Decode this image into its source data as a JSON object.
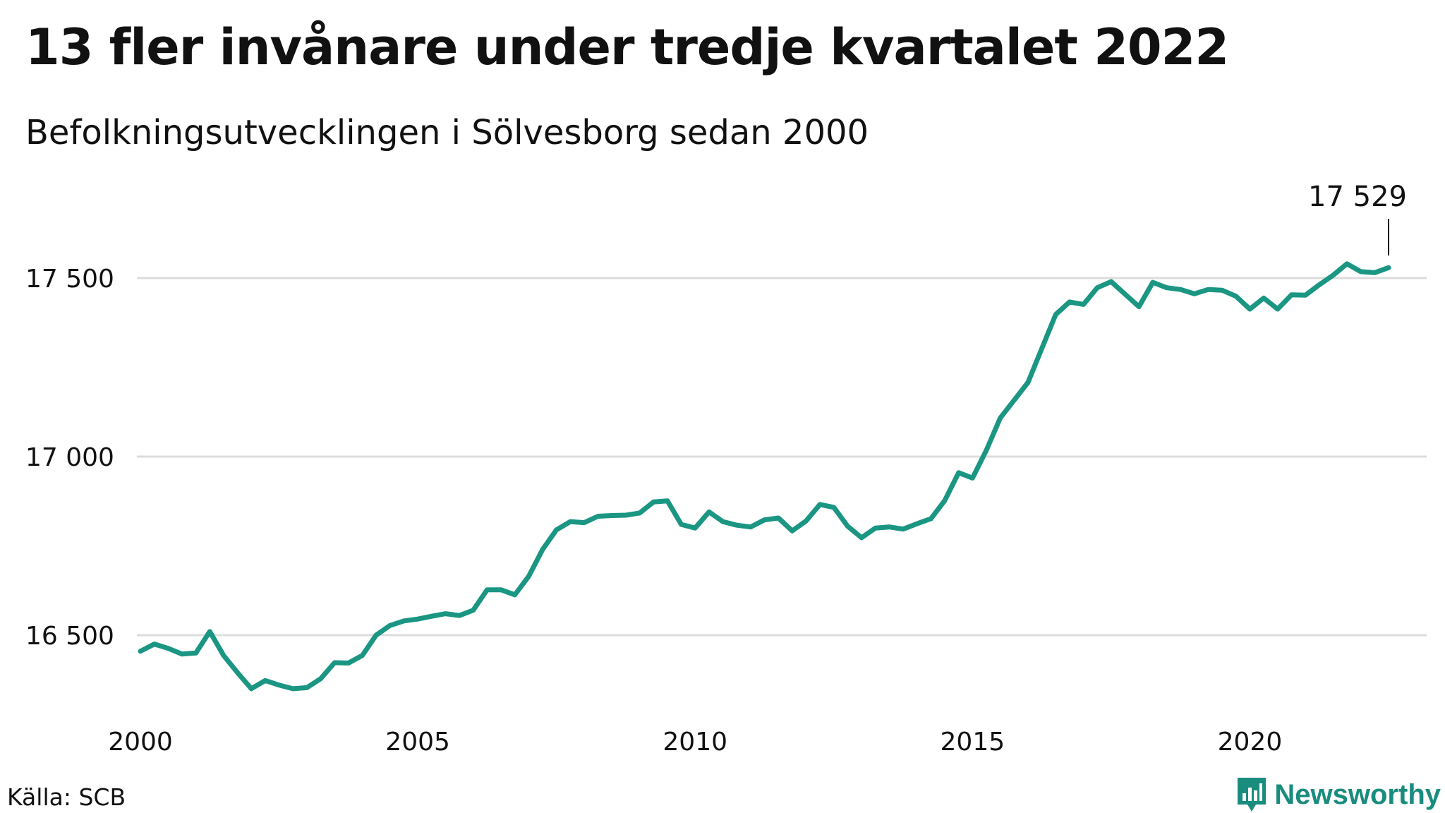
{
  "header": {
    "title": "13 fler invånare under tredje kvartalet 2022",
    "subtitle": "Befolkningsutvecklingen i Sölvesborg sedan 2000"
  },
  "footer": {
    "source": "Källa: SCB",
    "brand": "Newsworthy",
    "brand_icon": "bar-chart-icon"
  },
  "colors": {
    "line": "#1a9683",
    "grid": "#dcdcdc",
    "text": "#111111",
    "brand": "#1a8c7e"
  },
  "chart_data": {
    "type": "line",
    "title": "13 fler invånare under tredje kvartalet 2022",
    "subtitle": "Befolkningsutvecklingen i Sölvesborg sedan 2000",
    "xlabel": "",
    "ylabel": "",
    "xlim": [
      2000,
      2023.75
    ],
    "ylim": [
      16300,
      17800
    ],
    "grid": true,
    "legend": "none",
    "y_ticks": [
      16500,
      17000,
      17500
    ],
    "y_tick_labels": [
      "16 500",
      "17 000",
      "17 500"
    ],
    "x_ticks": [
      2000,
      2005,
      2010,
      2015,
      2020
    ],
    "x_tick_labels": [
      "2000",
      "2005",
      "2010",
      "2015",
      "2020"
    ],
    "annotation": {
      "label": "17 529",
      "x": 2022.5,
      "y": 17529
    },
    "series": [
      {
        "x": [
          2000,
          2000.25,
          2000.5,
          2000.75,
          2001,
          2001.25,
          2001.5,
          2001.75,
          2002,
          2002.25,
          2002.5,
          2002.75,
          2003,
          2003.25,
          2003.5,
          2003.75,
          2004,
          2004.25,
          2004.5,
          2004.75,
          2005,
          2005.25,
          2005.5,
          2005.75,
          2006,
          2006.25,
          2006.5,
          2006.75,
          2007,
          2007.25,
          2007.5,
          2007.75,
          2008,
          2008.25,
          2008.5,
          2008.75,
          2009,
          2009.25,
          2009.5,
          2009.75,
          2010,
          2010.25,
          2010.5,
          2010.75,
          2011,
          2011.25,
          2011.5,
          2011.75,
          2012,
          2012.25,
          2012.5,
          2012.75,
          2013,
          2013.25,
          2013.5,
          2013.75,
          2014,
          2014.25,
          2014.5,
          2014.75,
          2015,
          2015.25,
          2015.5,
          2015.75,
          2016,
          2016.25,
          2016.5,
          2016.75,
          2017,
          2017.25,
          2017.5,
          2017.75,
          2018,
          2018.25,
          2018.5,
          2018.75,
          2019,
          2019.25,
          2019.5,
          2019.75,
          2020,
          2020.25,
          2020.5,
          2020.75,
          2021,
          2021.25,
          2021.5,
          2021.75,
          2022,
          2022.25,
          2022.5
        ],
        "values": [
          16455,
          16475,
          16463,
          16447,
          16450,
          16510,
          16443,
          16395,
          16350,
          16373,
          16360,
          16350,
          16353,
          16378,
          16423,
          16422,
          16443,
          16500,
          16527,
          16540,
          16545,
          16553,
          16560,
          16555,
          16570,
          16627,
          16627,
          16613,
          16665,
          16740,
          16795,
          16818,
          16815,
          16833,
          16835,
          16836,
          16842,
          16873,
          16876,
          16810,
          16800,
          16845,
          16818,
          16808,
          16803,
          16823,
          16828,
          16792,
          16820,
          16866,
          16858,
          16805,
          16773,
          16800,
          16803,
          16797,
          16812,
          16826,
          16877,
          16955,
          16940,
          17018,
          17108,
          17158,
          17208,
          17303,
          17398,
          17433,
          17426,
          17473,
          17490,
          17455,
          17420,
          17488,
          17473,
          17468,
          17456,
          17468,
          17466,
          17449,
          17413,
          17444,
          17413,
          17453,
          17452,
          17481,
          17508,
          17540,
          17518,
          17515,
          17529
        ]
      }
    ]
  }
}
